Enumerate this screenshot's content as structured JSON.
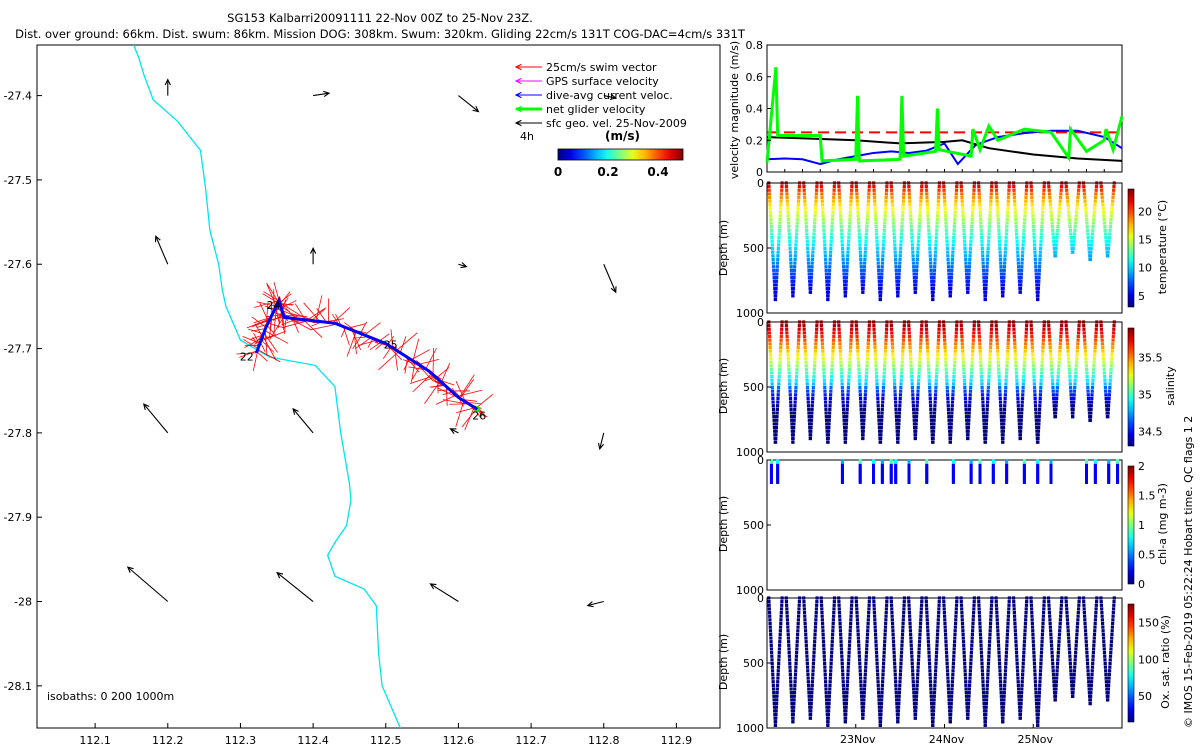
{
  "figure": {
    "title_line1": "SG153 Kalbarri20091111 22-Nov 00Z to 25-Nov 23Z.",
    "title_line2": "Dist. over ground: 66km. Dist. swum: 86km. Mission DOG: 308km. Swum: 320km. Gliding 22cm/s 131T COG-DAC=4cm/s 331T",
    "copyright": "© IMOS 15-Feb-2019 05:22:24 Hobart time. QC flags 1  2"
  },
  "colors": {
    "swim": "#ff0000",
    "gps": "#ff00ff",
    "dac": "#0000ff",
    "net": "#00ff00",
    "geo": "#000000",
    "coast": "#00e5ee",
    "threshold": "#ff0000"
  },
  "chart_data": [
    {
      "id": "map",
      "type": "scatter",
      "title": "",
      "xlim": [
        112.02,
        112.96
      ],
      "ylim": [
        -28.15,
        -27.34
      ],
      "xticks": [
        112.1,
        112.2,
        112.3,
        112.4,
        112.5,
        112.6,
        112.7,
        112.8,
        112.9
      ],
      "xtick_labels": [
        "112.1",
        "112.2",
        "112.3",
        "112.4",
        "112.5",
        "112.6",
        "112.7",
        "112.8",
        "112.9"
      ],
      "yticks": [
        -27.4,
        -27.5,
        -27.6,
        -27.7,
        -27.8,
        -27.9,
        -28.0,
        -28.1
      ],
      "ytick_labels": [
        "-27.4",
        "-27.5",
        "-27.6",
        "-27.7",
        "-27.8",
        "-27.9",
        "-28",
        "-28.1"
      ],
      "legend": {
        "position": "top-right",
        "items": [
          {
            "label": "25cm/s swim vector",
            "color_key": "swim"
          },
          {
            "label": "GPS surface velocity",
            "color_key": "gps"
          },
          {
            "label": "dive-avg current veloc.",
            "color_key": "dac"
          },
          {
            "label": "net glider velocity",
            "color_key": "net"
          },
          {
            "label": "sfc geo. vel. 25-Nov-2009",
            "color_key": "geo"
          }
        ],
        "interval_label": "4h",
        "colorbar_title": "(m/s)",
        "colorbar_ticks": [
          "0",
          "0.2",
          "0.4"
        ],
        "colorbar_range": [
          0,
          0.5
        ]
      },
      "isobaths_label": "isobaths: 0   200  1000m",
      "day_labels": [
        {
          "text": "22",
          "lon": 112.299,
          "lat": -27.714
        },
        {
          "text": "24",
          "lon": 112.336,
          "lat": -27.653
        },
        {
          "text": "25",
          "lon": 112.497,
          "lat": -27.7
        },
        {
          "text": "26",
          "lon": 112.619,
          "lat": -27.784
        }
      ],
      "glider_track": [
        {
          "lon": 112.322,
          "lat": -27.705
        },
        {
          "lon": 112.335,
          "lat": -27.675
        },
        {
          "lon": 112.353,
          "lat": -27.643
        },
        {
          "lon": 112.36,
          "lat": -27.663
        },
        {
          "lon": 112.43,
          "lat": -27.67
        },
        {
          "lon": 112.5,
          "lat": -27.694
        },
        {
          "lon": 112.56,
          "lat": -27.727
        },
        {
          "lon": 112.6,
          "lat": -27.758
        },
        {
          "lon": 112.626,
          "lat": -27.772
        }
      ],
      "isobath_200m": [
        {
          "lon": 112.153,
          "lat": -27.34
        },
        {
          "lon": 112.16,
          "lat": -27.355
        },
        {
          "lon": 112.167,
          "lat": -27.375
        },
        {
          "lon": 112.18,
          "lat": -27.405
        },
        {
          "lon": 112.213,
          "lat": -27.43
        },
        {
          "lon": 112.245,
          "lat": -27.465
        },
        {
          "lon": 112.252,
          "lat": -27.51
        },
        {
          "lon": 112.258,
          "lat": -27.56
        },
        {
          "lon": 112.27,
          "lat": -27.6
        },
        {
          "lon": 112.275,
          "lat": -27.63
        },
        {
          "lon": 112.28,
          "lat": -27.65
        },
        {
          "lon": 112.3,
          "lat": -27.69
        },
        {
          "lon": 112.34,
          "lat": -27.71
        },
        {
          "lon": 112.403,
          "lat": -27.72
        },
        {
          "lon": 112.43,
          "lat": -27.745
        },
        {
          "lon": 112.438,
          "lat": -27.8
        },
        {
          "lon": 112.45,
          "lat": -27.86
        },
        {
          "lon": 112.452,
          "lat": -27.88
        },
        {
          "lon": 112.446,
          "lat": -27.91
        },
        {
          "lon": 112.43,
          "lat": -27.93
        },
        {
          "lon": 112.42,
          "lat": -27.945
        },
        {
          "lon": 112.43,
          "lat": -27.97
        },
        {
          "lon": 112.47,
          "lat": -27.985
        },
        {
          "lon": 112.487,
          "lat": -28.005
        },
        {
          "lon": 112.49,
          "lat": -28.06
        },
        {
          "lon": 112.495,
          "lat": -28.1
        },
        {
          "lon": 112.515,
          "lat": -28.14
        },
        {
          "lon": 112.52,
          "lat": -28.15
        }
      ],
      "geo_vectors": [
        {
          "lon": 112.2,
          "lat": -27.4,
          "u": 0.0,
          "v": 0.02
        },
        {
          "lon": 112.4,
          "lat": -27.4,
          "u": 0.02,
          "v": 0.003
        },
        {
          "lon": 112.6,
          "lat": -27.4,
          "u": 0.025,
          "v": -0.02
        },
        {
          "lon": 112.8,
          "lat": -27.4,
          "u": 0.015,
          "v": -0.003
        },
        {
          "lon": 112.2,
          "lat": -27.6,
          "u": -0.015,
          "v": 0.035
        },
        {
          "lon": 112.4,
          "lat": -27.6,
          "u": 0.0,
          "v": 0.02
        },
        {
          "lon": 112.6,
          "lat": -27.6,
          "u": 0.01,
          "v": -0.003
        },
        {
          "lon": 112.8,
          "lat": -27.6,
          "u": 0.015,
          "v": -0.035
        },
        {
          "lon": 112.2,
          "lat": -27.8,
          "u": -0.03,
          "v": 0.036
        },
        {
          "lon": 112.4,
          "lat": -27.8,
          "u": -0.025,
          "v": 0.03
        },
        {
          "lon": 112.6,
          "lat": -27.8,
          "u": -0.01,
          "v": 0.005
        },
        {
          "lon": 112.8,
          "lat": -27.8,
          "u": -0.005,
          "v": -0.02
        },
        {
          "lon": 112.2,
          "lat": -28.0,
          "u": -0.05,
          "v": 0.043
        },
        {
          "lon": 112.4,
          "lat": -28.0,
          "u": -0.045,
          "v": 0.036
        },
        {
          "lon": 112.6,
          "lat": -28.0,
          "u": -0.035,
          "v": 0.022
        },
        {
          "lon": 112.8,
          "lat": -28.0,
          "u": -0.02,
          "v": -0.005
        }
      ]
    },
    {
      "id": "velocity",
      "type": "line",
      "ylabel": "velocity magnitude (m/s)",
      "ylim": [
        0,
        0.8
      ],
      "yticks": [
        0,
        0.2,
        0.4,
        0.6,
        0.8
      ],
      "ytick_labels": [
        "0",
        "0.2",
        "0.4",
        "0.6",
        "0.8"
      ],
      "xlim": [
        22,
        26
      ],
      "threshold": 0.25,
      "series": [
        {
          "color_key": "dac",
          "points": [
            [
              22.0,
              0.08
            ],
            [
              22.2,
              0.085
            ],
            [
              22.4,
              0.08
            ],
            [
              22.6,
              0.05
            ],
            [
              22.8,
              0.08
            ],
            [
              23.0,
              0.1
            ],
            [
              23.2,
              0.12
            ],
            [
              23.4,
              0.13
            ],
            [
              23.6,
              0.12
            ],
            [
              23.8,
              0.135
            ],
            [
              24.0,
              0.18
            ],
            [
              24.15,
              0.05
            ],
            [
              24.35,
              0.17
            ],
            [
              24.6,
              0.22
            ],
            [
              24.9,
              0.245
            ],
            [
              25.2,
              0.26
            ],
            [
              25.5,
              0.26
            ],
            [
              25.8,
              0.22
            ],
            [
              26.0,
              0.15
            ]
          ]
        },
        {
          "color_key": "geo",
          "points": [
            [
              22.0,
              0.22
            ],
            [
              22.5,
              0.21
            ],
            [
              23.0,
              0.2
            ],
            [
              23.5,
              0.18
            ],
            [
              24.0,
              0.19
            ],
            [
              24.2,
              0.2
            ],
            [
              24.5,
              0.15
            ],
            [
              25.0,
              0.11
            ],
            [
              25.5,
              0.085
            ],
            [
              26.0,
              0.07
            ]
          ]
        },
        {
          "color_key": "net",
          "points": [
            [
              22.0,
              0.06
            ],
            [
              22.1,
              0.66
            ],
            [
              22.12,
              0.23
            ],
            [
              22.6,
              0.23
            ],
            [
              22.62,
              0.07
            ],
            [
              23.0,
              0.08
            ],
            [
              23.02,
              0.48
            ],
            [
              23.04,
              0.07
            ],
            [
              23.5,
              0.08
            ],
            [
              23.52,
              0.48
            ],
            [
              23.54,
              0.1
            ],
            [
              23.9,
              0.13
            ],
            [
              23.92,
              0.4
            ],
            [
              23.94,
              0.14
            ],
            [
              24.3,
              0.1
            ],
            [
              24.32,
              0.27
            ],
            [
              24.4,
              0.14
            ],
            [
              24.5,
              0.29
            ],
            [
              24.6,
              0.2
            ],
            [
              24.9,
              0.27
            ],
            [
              25.2,
              0.25
            ],
            [
              25.4,
              0.09
            ],
            [
              25.42,
              0.27
            ],
            [
              25.6,
              0.13
            ],
            [
              25.8,
              0.2
            ],
            [
              25.82,
              0.27
            ],
            [
              25.9,
              0.14
            ],
            [
              26.0,
              0.35
            ]
          ]
        }
      ]
    },
    {
      "id": "temperature",
      "type": "scatter",
      "ylabel": "Depth (m)",
      "colorbar_label": "temperature (°C)",
      "colorbar_ticks": [
        "5",
        "10",
        "15",
        "20"
      ],
      "colorbar_range": [
        3,
        24
      ],
      "ylim": [
        0,
        1000
      ],
      "yticks": [
        "0",
        "500",
        "1000"
      ],
      "dives_per_day": 5,
      "max_depth_early": 900,
      "max_depth_late": 600,
      "late_start_day": 25.1
    },
    {
      "id": "salinity",
      "type": "scatter",
      "ylabel": "Depth (m)",
      "colorbar_label": "salinity",
      "colorbar_ticks": [
        "34.5",
        "35",
        "35.5"
      ],
      "colorbar_range": [
        34.3,
        35.9
      ],
      "ylim": [
        0,
        1000
      ],
      "yticks": [
        "0",
        "500",
        "1000"
      ],
      "max_depth_early": 950,
      "max_depth_late": 780,
      "late_start_day": 25.1
    },
    {
      "id": "chlorophyll",
      "type": "scatter",
      "ylabel": "Depth (m)",
      "colorbar_label": "chl-a (mg m-3)",
      "colorbar_ticks": [
        "0",
        "0.5",
        "1",
        "1.5",
        "2"
      ],
      "colorbar_range": [
        0,
        2
      ],
      "ylim": [
        0,
        1000
      ],
      "yticks": [
        "0",
        "500",
        "1000"
      ],
      "profile_days": [
        22.05,
        22.12,
        22.85,
        23.05,
        23.2,
        23.3,
        23.4,
        23.45,
        23.6,
        23.8,
        24.1,
        24.3,
        24.4,
        24.55,
        24.7,
        24.9,
        25.05,
        25.2,
        25.6,
        25.7,
        25.85,
        25.95
      ],
      "max_depth": 180
    },
    {
      "id": "oxygen",
      "type": "scatter",
      "ylabel": "Depth (m)",
      "colorbar_label": "Ox. sat. ratio (%)",
      "colorbar_ticks": [
        "50",
        "100",
        "150"
      ],
      "colorbar_range": [
        15,
        175
      ],
      "ylim": [
        0,
        1000
      ],
      "yticks": [
        "0",
        "500",
        "1000"
      ],
      "xticks": [
        23,
        24,
        25
      ],
      "xtick_labels": [
        "23Nov",
        "24Nov",
        "25Nov"
      ],
      "max_depth_early": 980,
      "max_depth_late": 820,
      "late_start_day": 25.1
    }
  ]
}
